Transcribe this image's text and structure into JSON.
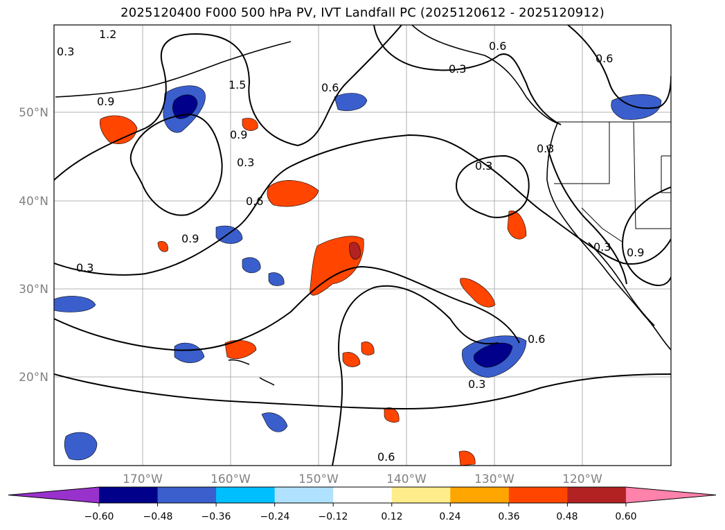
{
  "title": "2025120400 F000 500 hPa PV, IVT Landfall PC (2025120612 - 2025120912)",
  "lon_labels": [
    "170°W",
    "160°W",
    "150°W",
    "140°W",
    "130°W",
    "120°W"
  ],
  "lat_labels": [
    "50°N",
    "40°N",
    "30°N",
    "20°N"
  ],
  "contour_labels": [
    "1.2",
    "0.3",
    "0.9",
    "0.6",
    "1.5",
    "0.9",
    "0.3",
    "0.6",
    "0.9",
    "0.3",
    "0.6",
    "0.3",
    "0.3",
    "0.6",
    "0.3",
    "0.6",
    "0.9",
    "0.3",
    "0.3",
    "0.6"
  ],
  "colorbar": {
    "ticks": [
      "−0.60",
      "−0.48",
      "−0.36",
      "−0.24",
      "−0.12",
      "0.12",
      "0.24",
      "0.36",
      "0.48",
      "0.60"
    ],
    "colors": [
      "#9932cc",
      "#00008b",
      "#3a5fcd",
      "#00bfff",
      "#b0e2ff",
      "#ffffff",
      "#ffec8b",
      "#ffa500",
      "#ff4500",
      "#b22222",
      "#ff82ab"
    ]
  }
}
